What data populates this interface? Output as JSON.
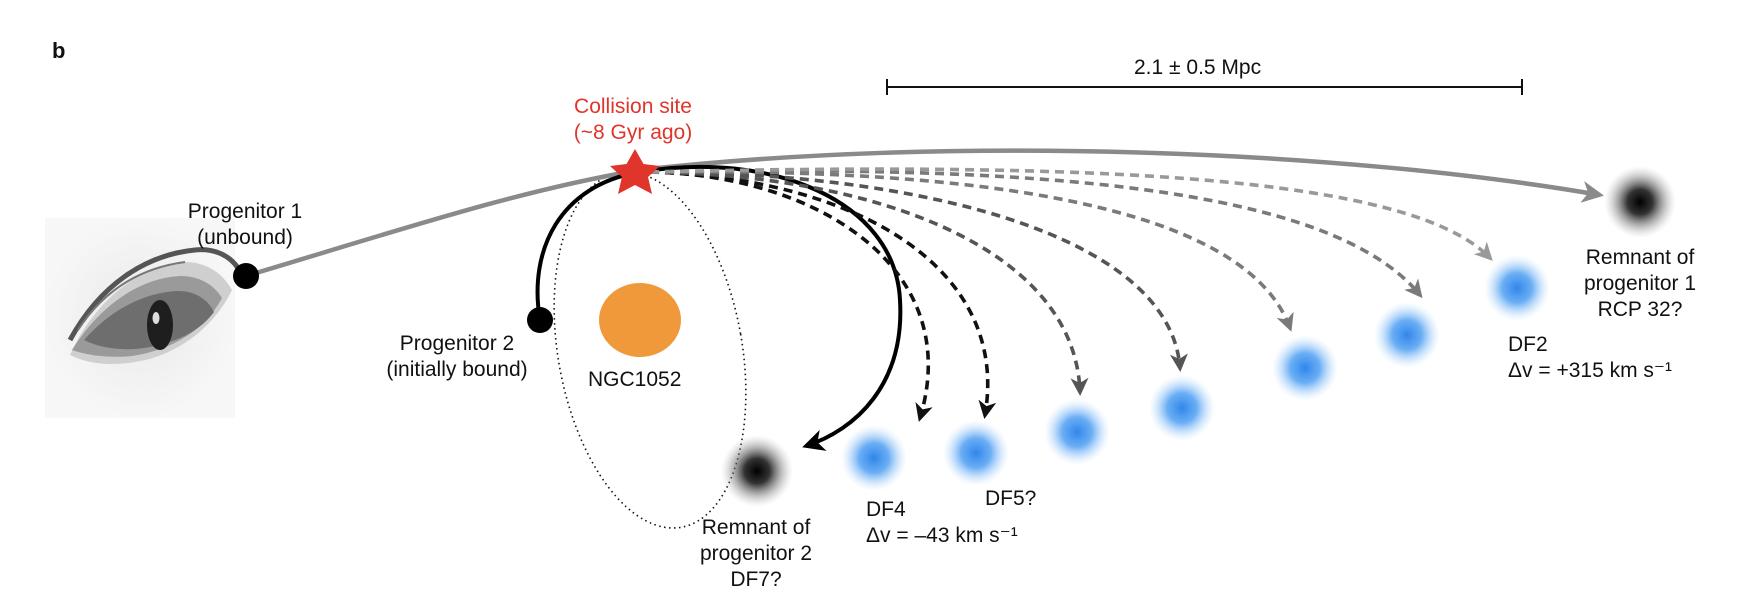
{
  "panel_letter": "b",
  "scale_bar": {
    "label": "2.1 ± 0.5 Mpc"
  },
  "collision": {
    "line1": "Collision site",
    "line2": "(~8 Gyr ago)",
    "color": "#e0352b"
  },
  "progenitor1": {
    "line1": "Progenitor 1",
    "line2": "(unbound)"
  },
  "progenitor2": {
    "line1": "Progenitor 2",
    "line2": "(initially bound)"
  },
  "host": {
    "name": "NGC1052",
    "color": "#f0993a"
  },
  "remnant1": {
    "line1": "Remnant of",
    "line2": "progenitor 1",
    "line3": "RCP 32?"
  },
  "remnant2": {
    "line1": "Remnant of",
    "line2": "progenitor 2",
    "line3": "DF7?"
  },
  "df4": {
    "name": "DF4",
    "dv": "Δv = –43 km s⁻¹"
  },
  "df5": {
    "name": "DF5?"
  },
  "df2": {
    "name": "DF2",
    "dv": "Δv = +315 km s⁻¹"
  },
  "colors": {
    "blue_galaxy": "#3a8ee8",
    "orbit_gray": "#8a8a8a"
  },
  "icons": [
    "eye-icon",
    "star-icon"
  ]
}
